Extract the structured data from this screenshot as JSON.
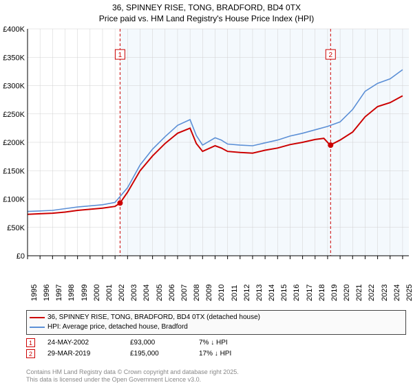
{
  "title": {
    "line1": "36, SPINNEY RISE, TONG, BRADFORD, BD4 0TX",
    "line2": "Price paid vs. HM Land Registry's House Price Index (HPI)"
  },
  "chart": {
    "type": "line",
    "background_color": "#ffffff",
    "shade_color": "#f4f9fd",
    "grid_color": "#d0d0d0",
    "axis_color": "#000000",
    "x_years": [
      "1995",
      "1996",
      "1997",
      "1998",
      "1999",
      "2000",
      "2001",
      "2002",
      "2003",
      "2004",
      "2005",
      "2006",
      "2007",
      "2008",
      "2009",
      "2010",
      "2011",
      "2012",
      "2013",
      "2014",
      "2015",
      "2016",
      "2017",
      "2018",
      "2019",
      "2020",
      "2021",
      "2022",
      "2023",
      "2024",
      "2025"
    ],
    "x_index_min": 1995,
    "x_index_max": 2025.5,
    "ylim": [
      0,
      400000
    ],
    "ytick_step": 50000,
    "ytick_labels": [
      "£0",
      "£50K",
      "£100K",
      "£150K",
      "£200K",
      "£250K",
      "£300K",
      "£350K",
      "£400K"
    ],
    "shade_start": 2002.4,
    "shade_end": 2025.5,
    "axis_fontsize": 11,
    "series1": {
      "name": "36, SPINNEY RISE, TONG, BRADFORD, BD4 0TX (detached house)",
      "color": "#cc0000",
      "line_width": 2,
      "data": [
        [
          1995,
          73000
        ],
        [
          1996,
          74000
        ],
        [
          1997,
          75000
        ],
        [
          1998,
          77000
        ],
        [
          1999,
          80000
        ],
        [
          2000,
          82000
        ],
        [
          2001,
          84000
        ],
        [
          2002,
          87000
        ],
        [
          2002.4,
          93000
        ],
        [
          2003,
          112000
        ],
        [
          2004,
          150000
        ],
        [
          2005,
          176000
        ],
        [
          2006,
          198000
        ],
        [
          2007,
          216000
        ],
        [
          2008,
          225000
        ],
        [
          2008.5,
          198000
        ],
        [
          2009,
          184000
        ],
        [
          2010,
          194000
        ],
        [
          2010.5,
          190000
        ],
        [
          2011,
          184000
        ],
        [
          2012,
          182000
        ],
        [
          2013,
          181000
        ],
        [
          2014,
          186000
        ],
        [
          2015,
          190000
        ],
        [
          2016,
          196000
        ],
        [
          2017,
          200000
        ],
        [
          2018,
          205000
        ],
        [
          2018.7,
          207000
        ],
        [
          2019.2,
          195000
        ],
        [
          2020,
          204000
        ],
        [
          2021,
          218000
        ],
        [
          2022,
          245000
        ],
        [
          2023,
          263000
        ],
        [
          2024,
          270000
        ],
        [
          2025,
          282000
        ]
      ]
    },
    "series2": {
      "name": "HPI: Average price, detached house, Bradford",
      "color": "#5b8fd6",
      "line_width": 1.6,
      "data": [
        [
          1995,
          78000
        ],
        [
          1996,
          79000
        ],
        [
          1997,
          80000
        ],
        [
          1998,
          83000
        ],
        [
          1999,
          86000
        ],
        [
          2000,
          88000
        ],
        [
          2001,
          90000
        ],
        [
          2002,
          94000
        ],
        [
          2003,
          120000
        ],
        [
          2004,
          160000
        ],
        [
          2005,
          188000
        ],
        [
          2006,
          210000
        ],
        [
          2007,
          230000
        ],
        [
          2008,
          240000
        ],
        [
          2008.5,
          212000
        ],
        [
          2009,
          195000
        ],
        [
          2010,
          208000
        ],
        [
          2010.5,
          204000
        ],
        [
          2011,
          197000
        ],
        [
          2012,
          195000
        ],
        [
          2013,
          194000
        ],
        [
          2014,
          199000
        ],
        [
          2015,
          204000
        ],
        [
          2016,
          211000
        ],
        [
          2017,
          216000
        ],
        [
          2018,
          222000
        ],
        [
          2019,
          228000
        ],
        [
          2020,
          236000
        ],
        [
          2021,
          258000
        ],
        [
          2022,
          290000
        ],
        [
          2023,
          304000
        ],
        [
          2024,
          312000
        ],
        [
          2025,
          328000
        ]
      ]
    },
    "sale_points": {
      "color": "#cc0000",
      "radius": 4,
      "points": [
        [
          2002.4,
          93000
        ],
        [
          2019.24,
          195000
        ]
      ]
    },
    "vlines": {
      "color": "#cc0000",
      "dash": "4,3",
      "width": 1,
      "markers": [
        {
          "x": 2002.4,
          "label": "1",
          "label_y": 355000
        },
        {
          "x": 2019.24,
          "label": "2",
          "label_y": 355000
        }
      ],
      "marker_box_border": "#cc0000",
      "marker_box_bg": "#ffffff",
      "marker_box_size": 14,
      "marker_fontsize": 10
    }
  },
  "legend": {
    "border_color": "#444444",
    "bg_color": "#fafafa",
    "fontsize": 10,
    "item1_color": "#cc0000",
    "item1_text": "36, SPINNEY RISE, TONG, BRADFORD, BD4 0TX (detached house)",
    "item2_color": "#5b8fd6",
    "item2_text": "HPI: Average price, detached house, Bradford"
  },
  "sales_markers": {
    "box_border": "#cc0000",
    "box_bg": "#ffffff",
    "arrow": "↓",
    "rows": [
      {
        "n": "1",
        "date": "24-MAY-2002",
        "price": "£93,000",
        "pct": "7% ↓ HPI"
      },
      {
        "n": "2",
        "date": "29-MAR-2019",
        "price": "£195,000",
        "pct": "17% ↓ HPI"
      }
    ]
  },
  "footnote": {
    "color": "#888888",
    "fontsize": 9,
    "line1": "Contains HM Land Registry data © Crown copyright and database right 2025.",
    "line2": "This data is licensed under the Open Government Licence v3.0."
  }
}
